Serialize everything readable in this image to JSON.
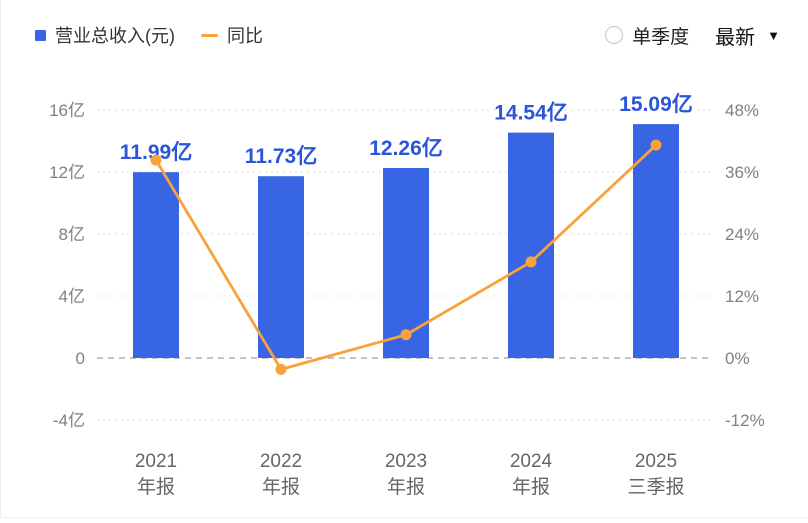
{
  "legend": {
    "revenue_label": "营业总收入(元)",
    "yoy_label": "同比"
  },
  "controls": {
    "single_quarter_label": "单季度",
    "period_selected": "最新",
    "caret": "▼"
  },
  "colors": {
    "bar": "#3865e3",
    "bar_value_label": "#2b55d9",
    "line": "#f9a13a",
    "axis_text": "#7f7f7f",
    "category_text": "#666666",
    "grid": "#dcdcdc",
    "zero_line": "#b0b0b0"
  },
  "chart_data": {
    "type": "bar",
    "title": "",
    "categories": [
      [
        "2021",
        "年报"
      ],
      [
        "2022",
        "年报"
      ],
      [
        "2023",
        "年报"
      ],
      [
        "2024",
        "年报"
      ],
      [
        "2025",
        "三季报"
      ]
    ],
    "series": [
      {
        "name": "营业总收入(元)",
        "type": "bar",
        "axis": "left",
        "unit": "亿",
        "values": [
          11.99,
          11.73,
          12.26,
          14.54,
          15.09
        ],
        "labels": [
          "11.99亿",
          "11.73亿",
          "12.26亿",
          "14.54亿",
          "15.09亿"
        ]
      },
      {
        "name": "同比",
        "type": "line",
        "axis": "right",
        "unit": "%",
        "values": [
          38.3,
          -2.2,
          4.5,
          18.6,
          41.2
        ]
      }
    ],
    "left_axis": {
      "label": "营业总收入(元)",
      "tick_labels": [
        "16亿",
        "12亿",
        "8亿",
        "4亿",
        "0",
        "-4亿"
      ],
      "tick_values": [
        16,
        12,
        8,
        4,
        0,
        -4
      ],
      "min": -4,
      "max": 16
    },
    "right_axis": {
      "label": "同比",
      "tick_labels": [
        "48%",
        "36%",
        "24%",
        "12%",
        "0%",
        "-12%"
      ],
      "tick_values": [
        48,
        36,
        24,
        12,
        0,
        -12
      ],
      "min": -12,
      "max": 48
    },
    "grid": "horizontal-dotted",
    "legend_position": "top-left"
  }
}
